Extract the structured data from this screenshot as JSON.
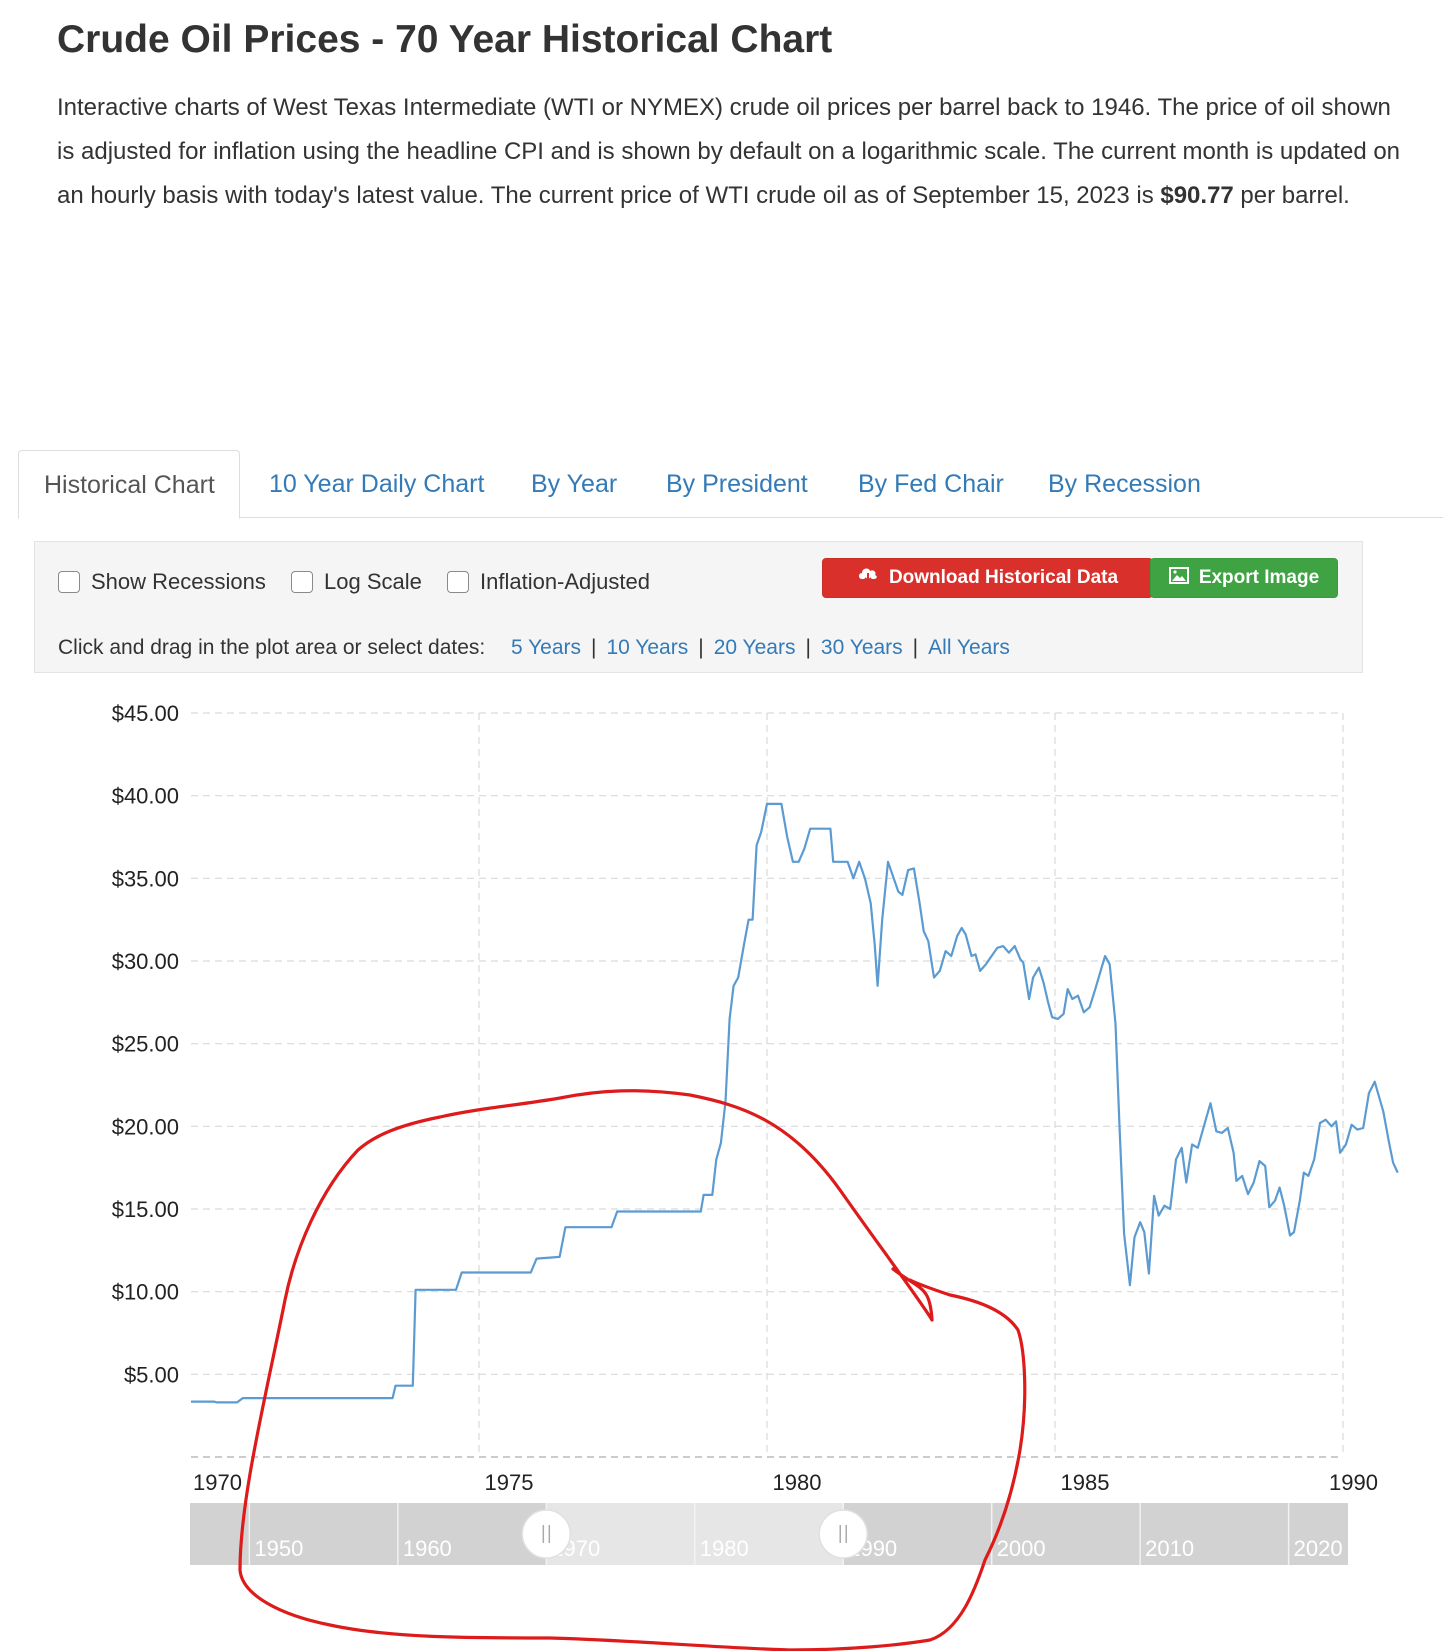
{
  "title": "Crude Oil Prices - 70 Year Historical Chart",
  "intro": {
    "text": "Interactive charts of West Texas Intermediate (WTI or NYMEX) crude oil prices per barrel back to 1946. The price of oil shown is adjusted for inflation using the headline CPI and is shown by default on a logarithmic scale. The current month is updated on an hourly basis with today's latest value. The current price of WTI crude oil as of September 15, 2023 is ",
    "price": "$90.77",
    "suffix": " per barrel."
  },
  "tabs": [
    {
      "label": "Historical Chart",
      "active": true
    },
    {
      "label": "10 Year Daily Chart"
    },
    {
      "label": "By Year"
    },
    {
      "label": "By President"
    },
    {
      "label": "By Fed Chair"
    },
    {
      "label": "By Recession"
    }
  ],
  "controls": {
    "checkboxes": [
      "Show Recessions",
      "Log Scale",
      "Inflation-Adjusted"
    ],
    "download_label": "Download Historical Data",
    "export_label": "Export Image",
    "date_prompt": "Click and drag in the plot area or select dates:",
    "ranges": [
      "5 Years",
      "10 Years",
      "20 Years",
      "30 Years",
      "All Years"
    ]
  },
  "colors": {
    "line": "#5b9bd1",
    "annotation": "#dd1b1b",
    "link": "#337ab7",
    "download_button": "#d9302c",
    "export_button": "#3fa243"
  },
  "chart_data": {
    "type": "line",
    "xlim": [
      1970,
      1990
    ],
    "ylim": [
      0,
      45
    ],
    "x_ticks": [
      "1970",
      "1975",
      "1980",
      "1985",
      "1990"
    ],
    "y_ticks": [
      "$5.00",
      "$10.00",
      "$15.00",
      "$20.00",
      "$25.00",
      "$30.00",
      "$35.00",
      "$40.00",
      "$45.00"
    ],
    "grid": true,
    "points": [
      [
        1970.0,
        3.35
      ],
      [
        1970.4,
        3.35
      ],
      [
        1970.45,
        3.3
      ],
      [
        1970.8,
        3.3
      ],
      [
        1970.9,
        3.56
      ],
      [
        1973.5,
        3.56
      ],
      [
        1973.55,
        4.31
      ],
      [
        1973.85,
        4.31
      ],
      [
        1973.9,
        10.11
      ],
      [
        1974.6,
        10.11
      ],
      [
        1974.7,
        11.16
      ],
      [
        1975.9,
        11.16
      ],
      [
        1976.0,
        12.0
      ],
      [
        1976.4,
        12.1
      ],
      [
        1976.5,
        13.9
      ],
      [
        1977.3,
        13.9
      ],
      [
        1977.4,
        14.85
      ],
      [
        1978.85,
        14.85
      ],
      [
        1978.9,
        15.85
      ],
      [
        1979.05,
        15.85
      ],
      [
        1979.12,
        18.0
      ],
      [
        1979.2,
        19.0
      ],
      [
        1979.28,
        21.5
      ],
      [
        1979.35,
        26.5
      ],
      [
        1979.42,
        28.5
      ],
      [
        1979.5,
        29.0
      ],
      [
        1979.6,
        31.0
      ],
      [
        1979.68,
        32.5
      ],
      [
        1979.75,
        32.5
      ],
      [
        1979.82,
        37.0
      ],
      [
        1979.9,
        37.8
      ],
      [
        1980.0,
        39.5
      ],
      [
        1980.1,
        39.5
      ],
      [
        1980.25,
        39.5
      ],
      [
        1980.35,
        37.5
      ],
      [
        1980.45,
        36.0
      ],
      [
        1980.55,
        36.0
      ],
      [
        1980.65,
        36.8
      ],
      [
        1980.75,
        38.0
      ],
      [
        1980.9,
        38.0
      ],
      [
        1981.1,
        38.0
      ],
      [
        1981.15,
        36.0
      ],
      [
        1981.4,
        36.0
      ],
      [
        1981.5,
        35.0
      ],
      [
        1981.6,
        36.0
      ],
      [
        1981.7,
        35.0
      ],
      [
        1981.8,
        33.5
      ],
      [
        1981.87,
        31.0
      ],
      [
        1981.92,
        28.5
      ],
      [
        1982.0,
        32.5
      ],
      [
        1982.1,
        36.0
      ],
      [
        1982.2,
        35.0
      ],
      [
        1982.28,
        34.2
      ],
      [
        1982.35,
        34.0
      ],
      [
        1982.45,
        35.5
      ],
      [
        1982.55,
        35.6
      ],
      [
        1982.65,
        33.5
      ],
      [
        1982.72,
        31.8
      ],
      [
        1982.8,
        31.2
      ],
      [
        1982.9,
        29.0
      ],
      [
        1983.0,
        29.4
      ],
      [
        1983.1,
        30.6
      ],
      [
        1983.2,
        30.3
      ],
      [
        1983.3,
        31.5
      ],
      [
        1983.38,
        32.0
      ],
      [
        1983.45,
        31.6
      ],
      [
        1983.55,
        30.3
      ],
      [
        1983.62,
        30.4
      ],
      [
        1983.7,
        29.4
      ],
      [
        1983.8,
        29.8
      ],
      [
        1983.9,
        30.3
      ],
      [
        1984.0,
        30.8
      ],
      [
        1984.1,
        30.9
      ],
      [
        1984.2,
        30.5
      ],
      [
        1984.3,
        30.9
      ],
      [
        1984.4,
        30.1
      ],
      [
        1984.45,
        29.9
      ],
      [
        1984.55,
        27.7
      ],
      [
        1984.62,
        29.0
      ],
      [
        1984.72,
        29.6
      ],
      [
        1984.8,
        28.7
      ],
      [
        1984.88,
        27.5
      ],
      [
        1984.95,
        26.6
      ],
      [
        1985.05,
        26.5
      ],
      [
        1985.15,
        26.8
      ],
      [
        1985.22,
        28.3
      ],
      [
        1985.3,
        27.7
      ],
      [
        1985.4,
        27.9
      ],
      [
        1985.5,
        26.9
      ],
      [
        1985.6,
        27.2
      ],
      [
        1985.7,
        28.3
      ],
      [
        1985.8,
        29.5
      ],
      [
        1985.87,
        30.3
      ],
      [
        1985.95,
        29.8
      ],
      [
        1986.05,
        26.2
      ],
      [
        1986.12,
        20.0
      ],
      [
        1986.2,
        13.5
      ],
      [
        1986.3,
        10.4
      ],
      [
        1986.38,
        13.3
      ],
      [
        1986.48,
        14.2
      ],
      [
        1986.55,
        13.6
      ],
      [
        1986.63,
        11.1
      ],
      [
        1986.72,
        15.8
      ],
      [
        1986.8,
        14.6
      ],
      [
        1986.9,
        15.2
      ],
      [
        1987.0,
        15.0
      ],
      [
        1987.1,
        18.0
      ],
      [
        1987.2,
        18.7
      ],
      [
        1987.28,
        16.6
      ],
      [
        1987.38,
        18.9
      ],
      [
        1987.48,
        18.7
      ],
      [
        1987.6,
        20.2
      ],
      [
        1987.7,
        21.4
      ],
      [
        1987.8,
        19.7
      ],
      [
        1987.9,
        19.6
      ],
      [
        1988.0,
        19.9
      ],
      [
        1988.1,
        18.4
      ],
      [
        1988.15,
        16.7
      ],
      [
        1988.25,
        17.0
      ],
      [
        1988.35,
        15.9
      ],
      [
        1988.45,
        16.6
      ],
      [
        1988.55,
        17.9
      ],
      [
        1988.65,
        17.6
      ],
      [
        1988.72,
        15.1
      ],
      [
        1988.82,
        15.5
      ],
      [
        1988.9,
        16.3
      ],
      [
        1988.98,
        15.2
      ],
      [
        1989.08,
        13.4
      ],
      [
        1989.15,
        13.6
      ],
      [
        1989.25,
        15.5
      ],
      [
        1989.32,
        17.2
      ],
      [
        1989.4,
        17.0
      ],
      [
        1989.5,
        18.0
      ],
      [
        1989.6,
        20.2
      ],
      [
        1989.7,
        20.4
      ],
      [
        1989.8,
        20.0
      ],
      [
        1989.88,
        20.3
      ],
      [
        1989.95,
        18.4
      ],
      [
        1990.05,
        18.9
      ],
      [
        1990.15,
        20.1
      ],
      [
        1990.25,
        19.8
      ],
      [
        1990.35,
        19.9
      ],
      [
        1990.45,
        22.0
      ],
      [
        1990.55,
        22.7
      ],
      [
        1990.7,
        20.9
      ],
      [
        1990.8,
        19.0
      ],
      [
        1990.87,
        17.8
      ],
      [
        1990.95,
        17.2
      ]
    ]
  },
  "navigator": {
    "labels": [
      "1950",
      "1960",
      "1970",
      "1980",
      "1990",
      "2000",
      "2010",
      "2020"
    ],
    "range": [
      1970,
      1990
    ]
  }
}
